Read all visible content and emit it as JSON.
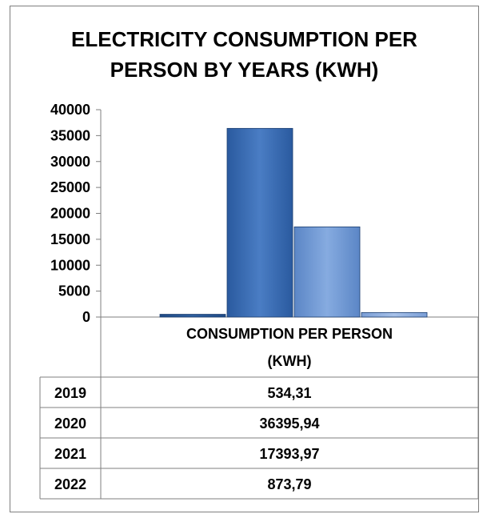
{
  "chart_data": {
    "type": "bar",
    "title": "ELECTRICITY CONSUMPTION PER\nPERSON BY YEARS (KWH)",
    "xlabel": "",
    "ylabel": "",
    "ylim": [
      0,
      40000
    ],
    "yticks": [
      40000,
      35000,
      30000,
      25000,
      20000,
      15000,
      10000,
      5000,
      0
    ],
    "categories": [
      "CONSUMPTION PER PERSON (KWH)"
    ],
    "series": [
      {
        "name": "2019",
        "values": [
          534.31
        ],
        "label": "534,31",
        "color": "#2e5f9e"
      },
      {
        "name": "2020",
        "values": [
          36395.94
        ],
        "label": "36395,94",
        "color": "#3d6fb8"
      },
      {
        "name": "2021",
        "values": [
          17393.97
        ],
        "label": "17393,97",
        "color": "#6e9ad6"
      },
      {
        "name": "2022",
        "values": [
          873.79
        ],
        "label": "873,79",
        "color": "#8eaede"
      }
    ],
    "grid": false,
    "legend": "data-table-below"
  }
}
